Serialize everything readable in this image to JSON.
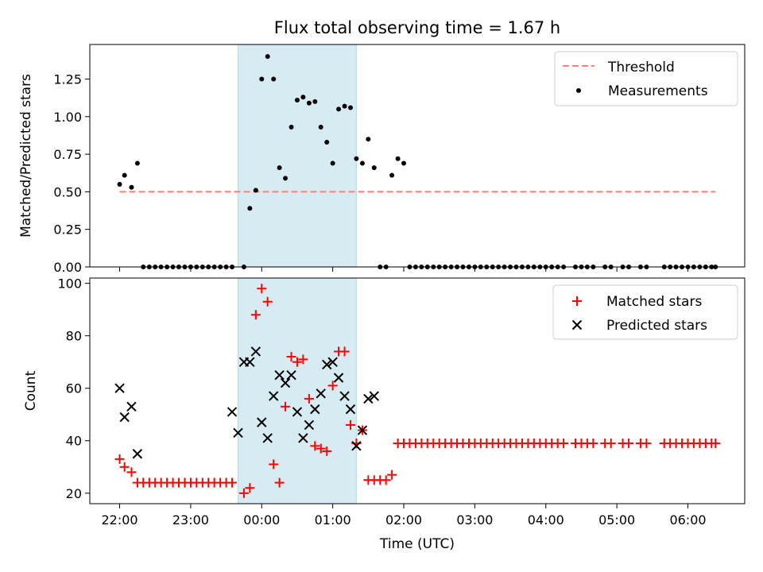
{
  "title": "Flux total observing time = 1.67 h",
  "colors": {
    "threshold": "#ff7f7f",
    "measurements": "#000000",
    "matched": "#ff0000",
    "predicted": "#000000",
    "shade": "#add8e6"
  },
  "chart_data": [
    {
      "type": "scatter",
      "panel": "top",
      "ylabel": "Matched/Predicted stars",
      "xlim": [
        -0.42,
        8.8
      ],
      "ylim": [
        0,
        1.48
      ],
      "yticks": [
        0.0,
        0.25,
        0.5,
        0.75,
        1.0,
        1.25
      ],
      "ytick_labels": [
        "0.00",
        "0.25",
        "0.50",
        "0.75",
        "1.00",
        "1.25"
      ],
      "grid": false,
      "legend_position": "top-right",
      "shaded_interval": [
        1.667,
        3.333
      ],
      "threshold": {
        "name": "Threshold",
        "y": 0.5,
        "x_range": [
          0.0,
          8.389
        ],
        "style": "dashed"
      },
      "series": [
        {
          "name": "Measurements",
          "x": [
            0.0,
            0.069,
            0.167,
            0.25,
            0.333,
            0.417,
            0.5,
            0.583,
            0.667,
            0.75,
            0.833,
            0.917,
            1.0,
            1.083,
            1.167,
            1.25,
            1.333,
            1.417,
            1.5,
            1.583,
            1.75,
            1.833,
            1.917,
            2.0,
            2.083,
            2.167,
            2.25,
            2.333,
            2.417,
            2.5,
            2.583,
            2.667,
            2.75,
            2.833,
            2.917,
            3.0,
            3.083,
            3.167,
            3.25,
            3.333,
            3.417,
            3.5,
            3.583,
            3.667,
            3.75,
            3.833,
            3.917,
            4.0,
            4.083,
            4.167,
            4.25,
            4.333,
            4.417,
            4.5,
            4.583,
            4.667,
            4.75,
            4.833,
            4.917,
            5.0,
            5.083,
            5.167,
            5.25,
            5.333,
            5.417,
            5.5,
            5.583,
            5.667,
            5.75,
            5.833,
            5.917,
            6.0,
            6.083,
            6.167,
            6.25,
            6.417,
            6.5,
            6.583,
            6.667,
            6.833,
            6.917,
            7.083,
            7.167,
            7.333,
            7.417,
            7.667,
            7.75,
            7.833,
            7.917,
            8.0,
            8.083,
            8.167,
            8.25,
            8.333,
            8.389
          ],
          "y": [
            0.55,
            0.61,
            0.53,
            0.69,
            0,
            0,
            0,
            0,
            0,
            0,
            0,
            0,
            0,
            0,
            0,
            0,
            0,
            0,
            0,
            0,
            0,
            0.39,
            0.51,
            1.25,
            1.4,
            1.25,
            0.66,
            0.59,
            0.93,
            1.11,
            1.13,
            1.09,
            1.1,
            0.93,
            0.83,
            0.69,
            1.05,
            1.07,
            1.06,
            0.72,
            0.69,
            0.85,
            0.66,
            0,
            0,
            0.61,
            0.72,
            0.69,
            0,
            0,
            0,
            0,
            0,
            0,
            0,
            0,
            0,
            0,
            0,
            0,
            0,
            0,
            0,
            0,
            0,
            0,
            0,
            0,
            0,
            0,
            0,
            0,
            0,
            0,
            0,
            0,
            0,
            0,
            0,
            0,
            0,
            0,
            0,
            0,
            0,
            0,
            0,
            0,
            0,
            0,
            0,
            0,
            0,
            0,
            0
          ]
        }
      ]
    },
    {
      "type": "scatter",
      "panel": "bottom",
      "xlabel": "Time (UTC)",
      "ylabel": "Count",
      "xlim": [
        -0.42,
        8.8
      ],
      "ylim": [
        16,
        102
      ],
      "yticks": [
        20,
        40,
        60,
        80,
        100
      ],
      "ytick_labels": [
        "20",
        "40",
        "60",
        "80",
        "100"
      ],
      "xticks": [
        0,
        1,
        2,
        3,
        4,
        5,
        6,
        7,
        8
      ],
      "xtick_labels": [
        "22:00",
        "23:00",
        "00:00",
        "01:00",
        "02:00",
        "03:00",
        "04:00",
        "05:00",
        "06:00"
      ],
      "grid": false,
      "legend_position": "top-right",
      "shaded_interval": [
        1.667,
        3.333
      ],
      "series": [
        {
          "name": "Matched stars",
          "marker": "+",
          "x": [
            0.0,
            0.069,
            0.167,
            0.25,
            0.333,
            0.417,
            0.5,
            0.583,
            0.667,
            0.75,
            0.833,
            0.917,
            1.0,
            1.083,
            1.167,
            1.25,
            1.333,
            1.417,
            1.5,
            1.583,
            1.75,
            1.833,
            1.917,
            2.0,
            2.083,
            2.167,
            2.25,
            2.333,
            2.417,
            2.5,
            2.583,
            2.667,
            2.75,
            2.833,
            2.917,
            3.0,
            3.083,
            3.167,
            3.25,
            3.333,
            3.417,
            3.5,
            3.583,
            3.667,
            3.75,
            3.833,
            3.917,
            4.0,
            4.083,
            4.167,
            4.25,
            4.333,
            4.417,
            4.5,
            4.583,
            4.667,
            4.75,
            4.833,
            4.917,
            5.0,
            5.083,
            5.167,
            5.25,
            5.333,
            5.417,
            5.5,
            5.583,
            5.667,
            5.75,
            5.833,
            5.917,
            6.0,
            6.083,
            6.167,
            6.25,
            6.417,
            6.5,
            6.583,
            6.667,
            6.833,
            6.917,
            7.083,
            7.167,
            7.333,
            7.417,
            7.667,
            7.75,
            7.833,
            7.917,
            8.0,
            8.083,
            8.167,
            8.25,
            8.333,
            8.389
          ],
          "y": [
            33,
            30,
            28,
            24,
            24,
            24,
            24,
            24,
            24,
            24,
            24,
            24,
            24,
            24,
            24,
            24,
            24,
            24,
            24,
            24,
            20,
            22,
            88,
            98,
            93,
            31,
            24,
            53,
            72,
            70,
            71,
            56,
            38,
            37,
            36,
            61,
            74,
            74,
            46,
            39,
            44,
            25,
            25,
            25,
            25,
            27,
            39,
            39,
            39,
            39,
            39,
            39,
            39,
            39,
            39,
            39,
            39,
            39,
            39,
            39,
            39,
            39,
            39,
            39,
            39,
            39,
            39,
            39,
            39,
            39,
            39,
            39,
            39,
            39,
            39,
            39,
            39,
            39,
            39,
            39,
            39,
            39,
            39,
            39,
            39,
            39,
            39,
            39,
            39,
            39,
            39,
            39,
            39,
            39,
            39
          ]
        },
        {
          "name": "Predicted stars",
          "marker": "x",
          "x": [
            0.0,
            0.069,
            0.167,
            0.25,
            1.583,
            1.667,
            1.75,
            1.833,
            1.917,
            2.0,
            2.083,
            2.167,
            2.25,
            2.333,
            2.417,
            2.5,
            2.583,
            2.667,
            2.75,
            2.833,
            2.917,
            3.0,
            3.083,
            3.167,
            3.25,
            3.333,
            3.417,
            3.5,
            3.583
          ],
          "y": [
            60,
            49,
            53,
            35,
            51,
            43,
            70,
            70,
            74,
            47,
            41,
            57,
            65,
            62,
            65,
            51,
            41,
            46,
            52,
            58,
            69,
            70,
            64,
            57,
            52,
            38,
            44,
            56,
            57
          ]
        }
      ]
    }
  ]
}
